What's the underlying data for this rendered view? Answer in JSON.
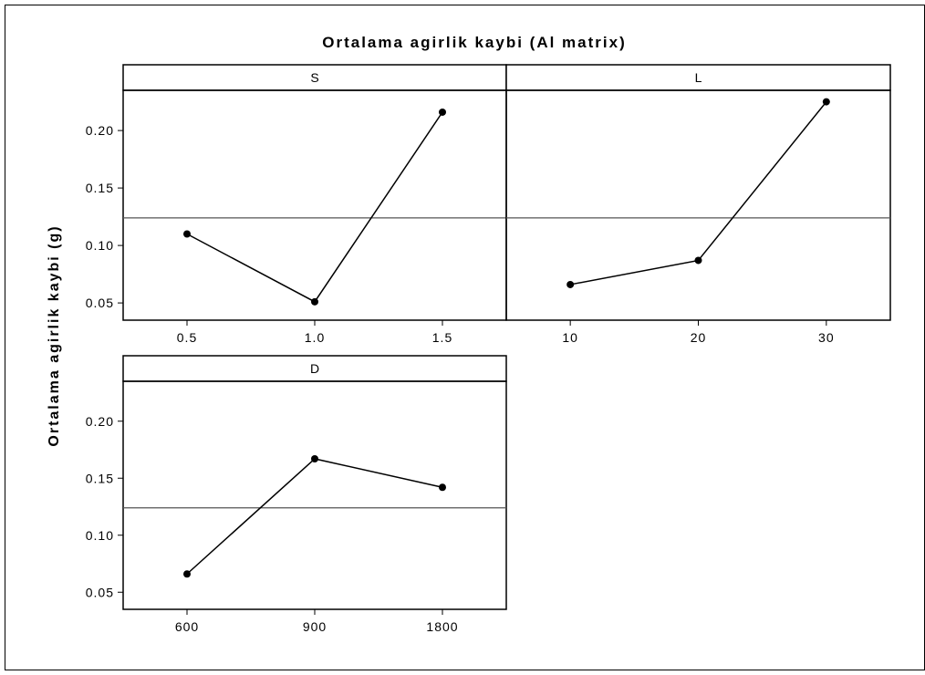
{
  "chart_data": {
    "type": "line",
    "title": "Ortalama agirlik kaybi (Al matrix)",
    "ylabel": "Ortalama agirlik kaybi (g)",
    "xlabel": "",
    "ylim": [
      0.035,
      0.235
    ],
    "yticks": [
      "0.05",
      "0.10",
      "0.15",
      "0.20"
    ],
    "mean_line": 0.124,
    "panels": [
      {
        "name": "S",
        "categories": [
          "0.5",
          "1.0",
          "1.5"
        ],
        "values": [
          0.11,
          0.051,
          0.216
        ]
      },
      {
        "name": "L",
        "categories": [
          "10",
          "20",
          "30"
        ],
        "values": [
          0.066,
          0.087,
          0.225
        ]
      },
      {
        "name": "D",
        "categories": [
          "600",
          "900",
          "1800"
        ],
        "values": [
          0.066,
          0.167,
          0.142
        ]
      }
    ],
    "colors": {
      "line": "#000000",
      "mean": "#555555",
      "frame": "#000000"
    }
  }
}
